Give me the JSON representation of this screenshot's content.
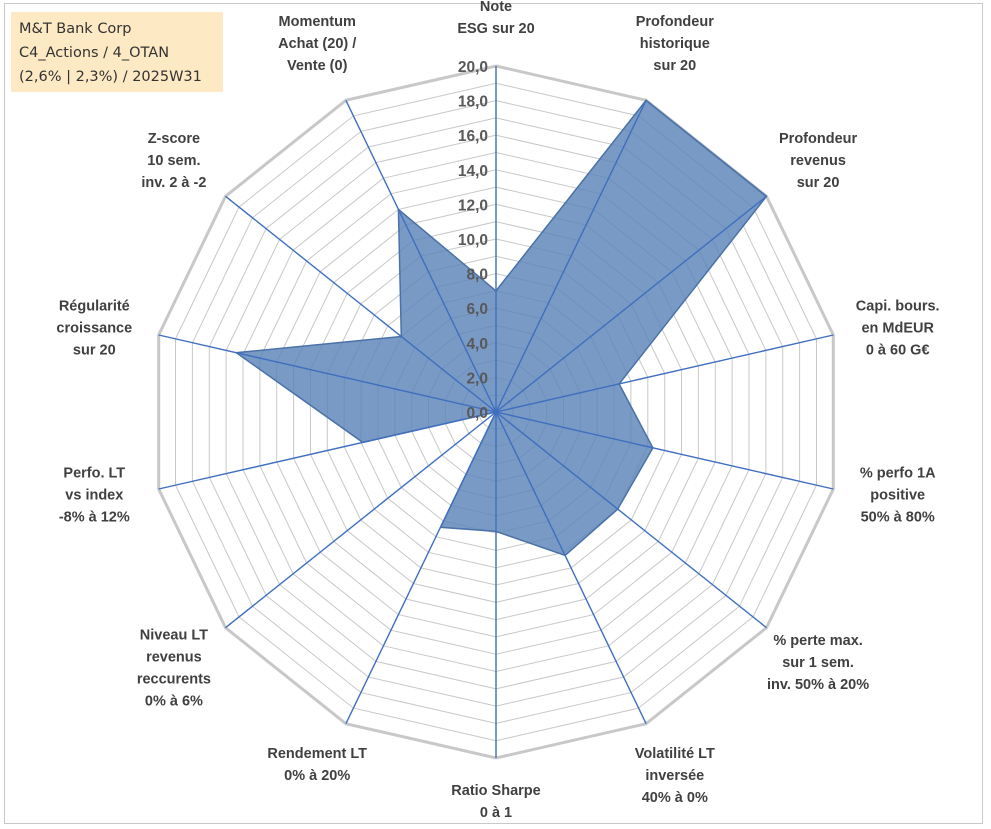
{
  "info": {
    "line1": "M&T Bank Corp",
    "line2": "C4_Actions / 4_OTAN",
    "line3": "(2,6% | 2,3%) / 2025W31"
  },
  "chart_data": {
    "type": "radar",
    "title": "",
    "rlim": [
      0,
      20
    ],
    "tick_labels": [
      "0,0",
      "2,0",
      "4,0",
      "6,0",
      "8,0",
      "10,0",
      "12,0",
      "14,0",
      "16,0",
      "18,0",
      "20,0"
    ],
    "axes": [
      {
        "label": [
          "Note",
          "ESG sur 20"
        ]
      },
      {
        "label": [
          "Profondeur",
          "historique",
          "sur 20"
        ]
      },
      {
        "label": [
          "Profondeur",
          "revenus",
          "sur 20"
        ]
      },
      {
        "label": [
          "Capi. bours.",
          "en MdEUR",
          "0 à 60 G€"
        ]
      },
      {
        "label": [
          "% perfo 1A",
          "positive",
          "50% à 80%"
        ]
      },
      {
        "label": [
          "% perte max.",
          "sur 1 sem.",
          "inv. 50% à 20%"
        ]
      },
      {
        "label": [
          "Volatilité LT",
          "inversée",
          "40% à 0%"
        ]
      },
      {
        "label": [
          "Ratio Sharpe",
          "0 à 1"
        ]
      },
      {
        "label": [
          "Rendement LT",
          "0% à 20%"
        ]
      },
      {
        "label": [
          "Niveau LT",
          "revenus",
          "reccurents",
          "0% à 6%"
        ]
      },
      {
        "label": [
          "Perfo. LT",
          "vs index",
          "-8% à 12%"
        ]
      },
      {
        "label": [
          "Régularité",
          "croissance",
          "sur 20"
        ]
      },
      {
        "label": [
          "Z-score",
          "10 sem.",
          "inv. 2 à -2"
        ]
      },
      {
        "label": [
          "Momentum",
          "Achat (20) /",
          "Vente (0)"
        ]
      }
    ],
    "series": [
      {
        "values": [
          7.0,
          20.0,
          20.0,
          7.3,
          9.3,
          9.0,
          9.2,
          6.9,
          7.4,
          0.0,
          7.9,
          15.4,
          7.0,
          13.0
        ],
        "color": "#5b84b8"
      }
    ],
    "grid": true,
    "legend": "none"
  }
}
